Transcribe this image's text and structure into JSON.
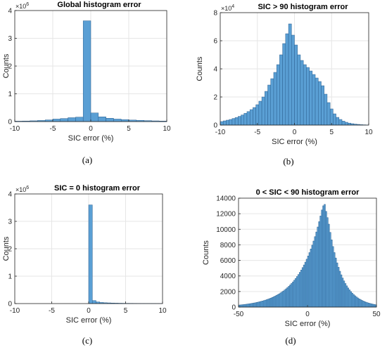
{
  "style": {
    "bar_fill": "#5a9fd4",
    "bar_edge": "#2a5f8f",
    "grid": "#e6e6e6",
    "axis": "#262626"
  },
  "chart_data": [
    {
      "type": "bar",
      "title": "Global histogram error",
      "xlabel": "SIC error (%)",
      "ylabel": "Counts",
      "xlim": [
        -10,
        10
      ],
      "ylim": [
        0,
        4000000
      ],
      "xticks": [
        "-10",
        "-5",
        "0",
        "5",
        "10"
      ],
      "yticks": [
        "0",
        "1",
        "2",
        "3",
        "4"
      ],
      "multiplier": "×10",
      "multiplier_exp": "6",
      "caption": "(a)",
      "bin_width": 1,
      "bin_centers": [
        -9.5,
        -8.5,
        -7.5,
        -6.5,
        -5.5,
        -4.5,
        -3.5,
        -2.5,
        -1.5,
        -0.5,
        0.5,
        1.5,
        2.5,
        3.5,
        4.5,
        5.5,
        6.5,
        7.5,
        8.5,
        9.5
      ],
      "values": [
        15000,
        20000,
        28000,
        40000,
        60000,
        90000,
        110000,
        140000,
        160000,
        3630000,
        310000,
        170000,
        120000,
        90000,
        70000,
        55000,
        45000,
        35000,
        25000,
        18000
      ]
    },
    {
      "type": "bar",
      "title": "SIC > 90 histogram error",
      "xlabel": "SIC error (%)",
      "ylabel": "Counts",
      "xlim": [
        -10,
        10
      ],
      "ylim": [
        0,
        80000
      ],
      "xticks": [
        "-10",
        "-5",
        "0",
        "5",
        "10"
      ],
      "yticks": [
        "0",
        "2",
        "4",
        "6",
        "8"
      ],
      "multiplier": "×10",
      "multiplier_exp": "4",
      "caption": "(b)",
      "bin_width": 0.4,
      "bin_centers": [
        -9.8,
        -9.4,
        -9.0,
        -8.6,
        -8.2,
        -7.8,
        -7.4,
        -7.0,
        -6.6,
        -6.2,
        -5.8,
        -5.4,
        -5.0,
        -4.6,
        -4.2,
        -3.8,
        -3.4,
        -3.0,
        -2.6,
        -2.2,
        -1.8,
        -1.4,
        -1.0,
        -0.6,
        -0.2,
        0.2,
        0.6,
        1.0,
        1.4,
        1.8,
        2.2,
        2.6,
        3.0,
        3.4,
        3.8,
        4.2,
        4.6,
        5.0,
        5.4,
        5.8,
        6.2,
        6.6,
        7.0,
        7.4,
        7.8,
        8.2,
        8.6,
        9.0,
        9.4,
        9.8
      ],
      "values": [
        2500,
        3000,
        3500,
        4000,
        4700,
        5400,
        6200,
        7200,
        8400,
        9600,
        11000,
        12500,
        14500,
        17000,
        20000,
        24000,
        28500,
        33000,
        37500,
        43000,
        50000,
        58000,
        65000,
        72000,
        64000,
        57000,
        50000,
        46000,
        43000,
        41000,
        38500,
        36000,
        33500,
        31000,
        28000,
        22000,
        16000,
        11500,
        8000,
        5500,
        4000,
        2800,
        2000,
        1400,
        1000,
        700,
        500,
        300,
        200,
        100
      ]
    },
    {
      "type": "bar",
      "title": "SIC = 0 histogram error",
      "xlabel": "SIC error (%)",
      "ylabel": "Counts",
      "xlim": [
        -10,
        10
      ],
      "ylim": [
        0,
        4000000
      ],
      "xticks": [
        "-10",
        "-5",
        "0",
        "5",
        "10"
      ],
      "yticks": [
        "0",
        "1",
        "2",
        "3",
        "4"
      ],
      "multiplier": "×10",
      "multiplier_exp": "6",
      "caption": "(c)",
      "bin_width": 0.5,
      "bin_centers": [
        0.25,
        0.75,
        1.25,
        1.75,
        2.25,
        2.75,
        3.25,
        3.75,
        4.25,
        4.75,
        5.25,
        5.75,
        6.25,
        6.75,
        7.25,
        7.75,
        8.25,
        8.75,
        9.25,
        9.75
      ],
      "values": [
        3600000,
        110000,
        60000,
        40000,
        30000,
        25000,
        20000,
        16000,
        13000,
        11000,
        9000,
        8000,
        7000,
        6000,
        5000,
        4000,
        3500,
        3000,
        2500,
        2000
      ]
    },
    {
      "type": "bar",
      "title": "0 < SIC < 90 histogram error",
      "xlabel": "SIC error (%)",
      "ylabel": "Counts",
      "xlim": [
        -50,
        50
      ],
      "ylim": [
        0,
        14000
      ],
      "xticks": [
        "-50",
        "0",
        "50"
      ],
      "xtick_values": [
        -50,
        0,
        50
      ],
      "yticks": [
        "0",
        "2000",
        "4000",
        "6000",
        "8000",
        "10000",
        "12000",
        "14000"
      ],
      "caption": "(d)",
      "bin_width": 1,
      "bin_centers": [
        -49.5,
        -48.5,
        -47.5,
        -46.5,
        -45.5,
        -44.5,
        -43.5,
        -42.5,
        -41.5,
        -40.5,
        -39.5,
        -38.5,
        -37.5,
        -36.5,
        -35.5,
        -34.5,
        -33.5,
        -32.5,
        -31.5,
        -30.5,
        -29.5,
        -28.5,
        -27.5,
        -26.5,
        -25.5,
        -24.5,
        -23.5,
        -22.5,
        -21.5,
        -20.5,
        -19.5,
        -18.5,
        -17.5,
        -16.5,
        -15.5,
        -14.5,
        -13.5,
        -12.5,
        -11.5,
        -10.5,
        -9.5,
        -8.5,
        -7.5,
        -6.5,
        -5.5,
        -4.5,
        -3.5,
        -2.5,
        -1.5,
        -0.5,
        0.5,
        1.5,
        2.5,
        3.5,
        4.5,
        5.5,
        6.5,
        7.5,
        8.5,
        9.5,
        10.5,
        11.5,
        12.5,
        13.5,
        14.5,
        15.5,
        16.5,
        17.5,
        18.5,
        19.5,
        20.5,
        21.5,
        22.5,
        23.5,
        24.5,
        25.5,
        26.5,
        27.5,
        28.5,
        29.5,
        30.5,
        31.5,
        32.5,
        33.5,
        34.5,
        35.5,
        36.5,
        37.5,
        38.5,
        39.5,
        40.5,
        41.5,
        42.5,
        43.5,
        44.5,
        45.5,
        46.5,
        47.5,
        48.5,
        49.5
      ],
      "values": [
        263,
        281,
        300,
        320,
        341,
        364,
        388,
        414,
        442,
        471,
        502,
        536,
        571,
        609,
        650,
        693,
        739,
        788,
        841,
        896,
        956,
        1019,
        1087,
        1159,
        1236,
        1318,
        1405,
        1499,
        1598,
        1704,
        1817,
        1938,
        2066,
        2203,
        2349,
        2505,
        2671,
        2849,
        3037,
        3239,
        3454,
        3683,
        3927,
        4188,
        4466,
        4762,
        5078,
        5415,
        5775,
        6158,
        6567,
        7002,
        7467,
        7963,
        8491,
        9055,
        9656,
        10297,
        10980,
        11709,
        12486,
        13020,
        13200,
        12300,
        11500,
        10660,
        9600,
        8644,
        7783,
        7008,
        6311,
        5683,
        5117,
        4608,
        4149,
        3736,
        3364,
        3030,
        2728,
        2457,
        2212,
        1992,
        1794,
        1615,
        1454,
        1310,
        1179,
        1062,
        956,
        861,
        775,
        698,
        629,
        566,
        510,
        459,
        413,
        372,
        335,
        302
      ]
    }
  ]
}
